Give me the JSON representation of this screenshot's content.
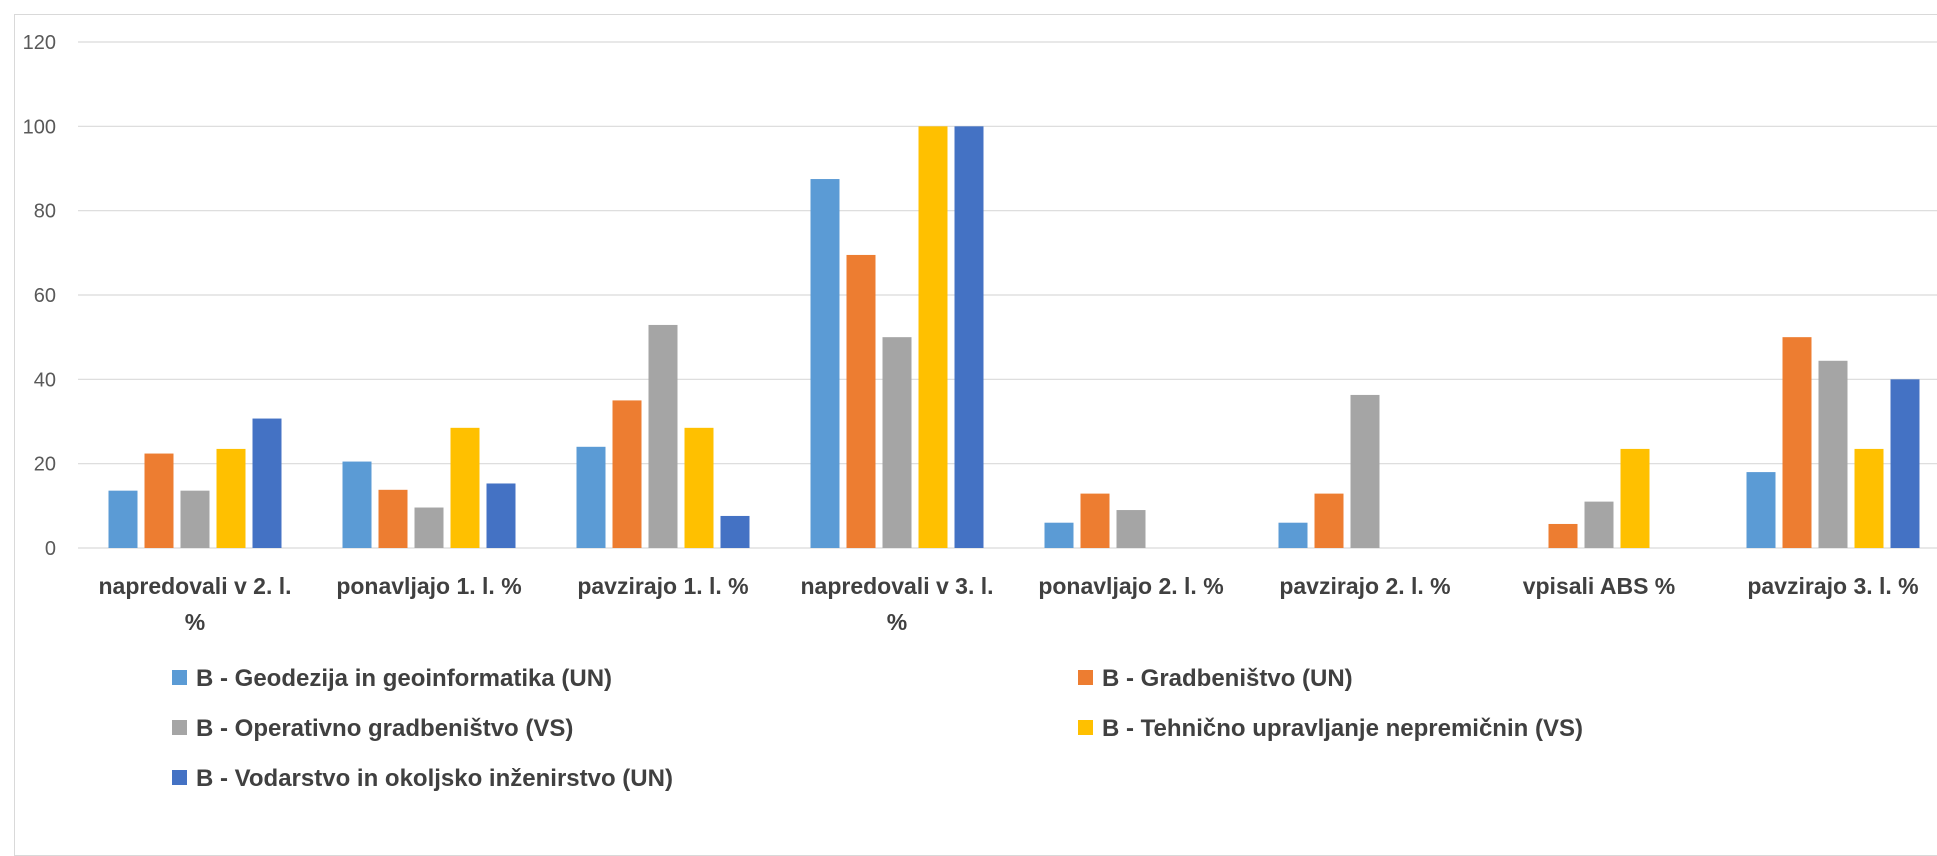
{
  "chart_data": {
    "type": "bar",
    "title": "",
    "xlabel": "",
    "ylabel": "",
    "ylim": [
      0,
      120
    ],
    "yticks": [
      "0",
      "20",
      "40",
      "60",
      "80",
      "100",
      "120"
    ],
    "grid": true,
    "legend_position": "bottom",
    "categories": [
      [
        "napredovali v 2. l.",
        "%"
      ],
      [
        "ponavljajo 1. l. %"
      ],
      [
        "pavzirajo 1. l. %"
      ],
      [
        "napredovali v 3. l.",
        "%"
      ],
      [
        "ponavljajo  2. l. %"
      ],
      [
        "pavzirajo 2. l. %"
      ],
      [
        "vpisali ABS %"
      ],
      [
        "pavzirajo 3. l.  %"
      ]
    ],
    "series": [
      {
        "name": "B - Geodezija in geoinformatika (UN)",
        "color": "#5b9bd5",
        "values": [
          13.6,
          20.5,
          24,
          87.5,
          6,
          6,
          0,
          18
        ]
      },
      {
        "name": "B - Gradbeništvo (UN)",
        "color": "#ed7d31",
        "values": [
          22.4,
          13.8,
          35,
          69.5,
          12.9,
          12.9,
          5.7,
          50
        ]
      },
      {
        "name": "B - Operativno gradbeništvo (VS)",
        "color": "#a5a5a5",
        "values": [
          13.6,
          9.6,
          52.9,
          50,
          9,
          36.3,
          11,
          44.4
        ]
      },
      {
        "name": "B - Tehnično upravljanje nepremičnin (VS)",
        "color": "#ffc000",
        "values": [
          23.5,
          28.5,
          28.5,
          100,
          0,
          0,
          23.5,
          23.5
        ]
      },
      {
        "name": "B - Vodarstvo in okoljsko inženirstvo (UN)",
        "color": "#4472c4",
        "values": [
          30.7,
          15.3,
          7.6,
          100,
          0,
          0,
          0,
          40
        ]
      }
    ]
  }
}
